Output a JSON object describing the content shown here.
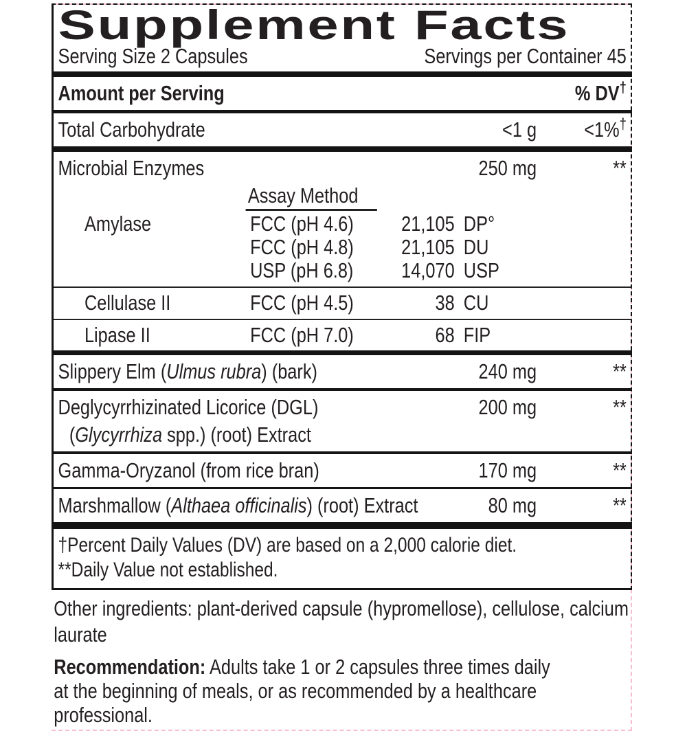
{
  "label": {
    "title": "Supplement Facts",
    "serving_size": "Serving Size 2 Capsules",
    "servings_per_container": "Servings per Container 45",
    "amount_header": "Amount per Serving",
    "dv_header": "% DV",
    "dagger": "†",
    "carb": {
      "name": "Total Carbohydrate",
      "amount": "<1 g",
      "dv": "<1%"
    },
    "microbial": {
      "name": "Microbial Enzymes",
      "amount": "250 mg",
      "dv": "**",
      "assay_header": "Assay Method",
      "rows": [
        {
          "enzyme": "Amylase",
          "method": "FCC (pH 4.6)",
          "num": "21,105",
          "unit": "DP°"
        },
        {
          "enzyme": "",
          "method": "FCC (pH 4.8)",
          "num": "21,105",
          "unit": "DU"
        },
        {
          "enzyme": "",
          "method": "USP (pH 6.8)",
          "num": "14,070",
          "unit": "USP"
        },
        {
          "enzyme": "Cellulase II",
          "method": "FCC (pH 4.5)",
          "num": "38",
          "unit": "CU"
        },
        {
          "enzyme": "Lipase II",
          "method": "FCC (pH 7.0)",
          "num": "68",
          "unit": "FIP"
        }
      ]
    },
    "slippery_elm": {
      "pre": "Slippery Elm (",
      "latin": "Ulmus rubra",
      "post": ") (bark)",
      "amount": "240 mg",
      "dv": "**"
    },
    "dgl": {
      "line1": "Deglycyrrhizinated Licorice (DGL)",
      "line2_pre": "(",
      "latin": "Glycyrrhiza",
      "line2_post": " spp.) (root) Extract",
      "amount": "200 mg",
      "dv": "**"
    },
    "gamma": {
      "name": "Gamma-Oryzanol (from rice bran)",
      "amount": "170 mg",
      "dv": "**"
    },
    "marshmallow": {
      "pre": "Marshmallow (",
      "latin": "Althaea officinalis",
      "post": ") (root) Extract",
      "amount": "80 mg",
      "dv": "**"
    },
    "footnote_dv": "†Percent Daily Values (DV) are based on a 2,000 calorie diet.",
    "footnote_nd": "**Daily Value not established.",
    "other_ingredients": "Other ingredients: plant-derived capsule (hypromellose), cellulose, calcium laurate",
    "recommendation_label": "Recommendation:",
    "recommendation_text": " Adults take 1 or 2 capsules three times daily at the beginning of meals, or as recommended by a healthcare professional."
  },
  "colors": {
    "text": "#231f20",
    "rule_black": "#141414",
    "dieline_pink": "#f6bed0",
    "background": "#ffffff"
  }
}
